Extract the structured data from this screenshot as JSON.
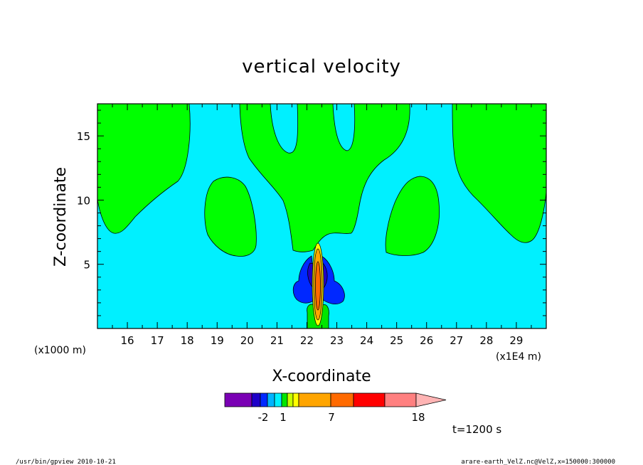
{
  "chart_data": {
    "type": "heatmap",
    "title": "vertical velocity",
    "xlabel": "X-coordinate",
    "ylabel": "Z-coordinate",
    "x_unit": "(x1E4 m)",
    "y_unit": "(x1000 m)",
    "xlim": [
      15.0,
      30.0
    ],
    "ylim": [
      0.0,
      17.5
    ],
    "x_ticks": [
      16,
      17,
      18,
      19,
      20,
      21,
      22,
      23,
      24,
      25,
      26,
      27,
      28,
      29
    ],
    "y_ticks": [
      5,
      10,
      15
    ],
    "time_label": "t=1200 s",
    "colorbar": {
      "colors": [
        "#7a00b4",
        "#1e00c8",
        "#0028ff",
        "#00b4ff",
        "#00f0ff",
        "#00e600",
        "#c8ff00",
        "#ffff00",
        "#ffa500",
        "#ff6a00",
        "#ff0000",
        "#ff8080",
        "#ffb4b4"
      ],
      "tick_labels": [
        "-2",
        "1",
        "7",
        "18"
      ]
    },
    "regions": {
      "background": "#00f0ff",
      "positive_weak": "#00ff00",
      "negative_core": "#1e00c8"
    }
  },
  "footer": {
    "left": "/usr/bin/gpview   2010-10-21",
    "right": "arare-earth_VelZ.nc@VelZ,x=150000:300000"
  }
}
